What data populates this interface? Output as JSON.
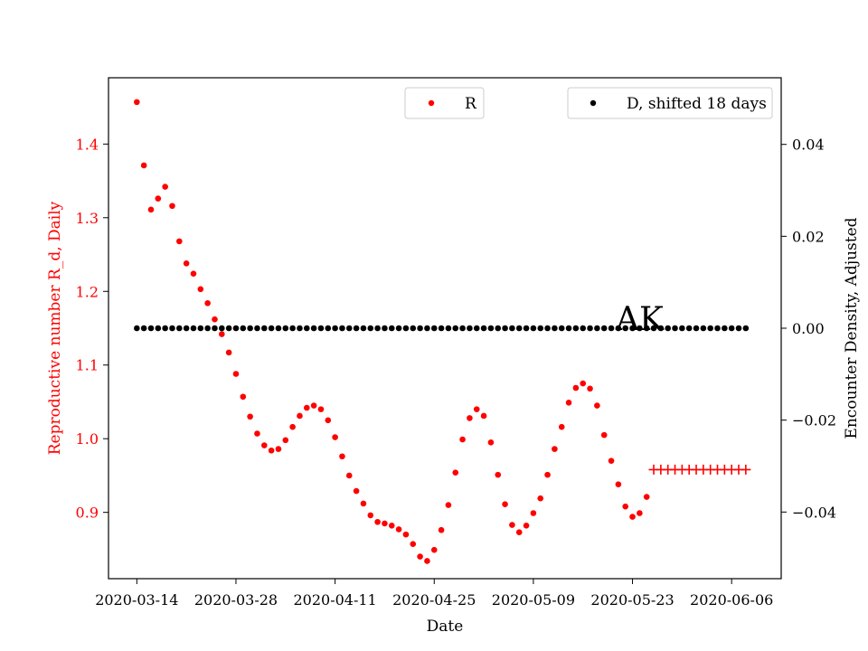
{
  "chart_data": {
    "type": "scatter",
    "annotation": "AK",
    "xlabel": "Date",
    "ylabel_left": "Reproductive number R_d, Daily",
    "ylabel_right": "Encounter Density, Adjusted",
    "x_ticks": [
      "2020-03-14",
      "2020-03-28",
      "2020-04-11",
      "2020-04-25",
      "2020-05-09",
      "2020-05-23",
      "2020-06-06"
    ],
    "y_left_ticks": [
      "0.9",
      "1.0",
      "1.1",
      "1.2",
      "1.3",
      "1.4"
    ],
    "y_right_ticks": [
      "−0.04",
      "−0.02",
      "0.00",
      "0.02",
      "0.04"
    ],
    "x_range": [
      "2020-03-10",
      "2020-06-13"
    ],
    "y_left_range": [
      0.81,
      1.49
    ],
    "y_right_range": [
      -0.0545,
      0.0545
    ],
    "colors": {
      "r_series": "#ff0000",
      "d_series": "#000000"
    },
    "legend_r": {
      "label": "R",
      "placement": "top-center"
    },
    "legend_d": {
      "label": "D, shifted 18 days",
      "placement": "top-right"
    },
    "series": [
      {
        "name": "R",
        "axis": "left",
        "marker": "dot",
        "color": "#ff0000",
        "start_date": "2020-03-14",
        "values": [
          1.457,
          1.371,
          1.311,
          1.326,
          1.342,
          1.316,
          1.268,
          1.238,
          1.224,
          1.203,
          1.184,
          1.162,
          1.142,
          1.117,
          1.088,
          1.057,
          1.03,
          1.007,
          0.991,
          0.984,
          0.986,
          0.998,
          1.016,
          1.031,
          1.042,
          1.045,
          1.04,
          1.025,
          1.002,
          0.976,
          0.95,
          0.929,
          0.912,
          0.896,
          0.887,
          0.885,
          0.882,
          0.877,
          0.87,
          0.857,
          0.84,
          0.834,
          0.849,
          0.876,
          0.91,
          0.954,
          0.999,
          1.028,
          1.04,
          1.031,
          0.995,
          0.951,
          0.911,
          0.883,
          0.873,
          0.882,
          0.899,
          0.919,
          0.951,
          0.986,
          1.016,
          1.049,
          1.069,
          1.075,
          1.068,
          1.045,
          1.005,
          0.97,
          0.938,
          0.908,
          0.894,
          0.899,
          0.921
        ]
      },
      {
        "name": "R",
        "axis": "left",
        "marker": "plus",
        "color": "#ff0000",
        "start_date": "2020-05-26",
        "values": [
          0.958,
          0.958,
          0.958,
          0.958,
          0.958,
          0.958,
          0.958,
          0.958,
          0.958,
          0.958,
          0.958,
          0.958,
          0.958,
          0.958
        ]
      },
      {
        "name": "D, shifted 18 days",
        "axis": "right",
        "marker": "dot",
        "color": "#000000",
        "start_date": "2020-03-14",
        "values": [
          0,
          0,
          0,
          0,
          0,
          0,
          0,
          0,
          0,
          0,
          0,
          0,
          0,
          0,
          0,
          0,
          0,
          0,
          0,
          0,
          0,
          0,
          0,
          0,
          0,
          0,
          0,
          0,
          0,
          0,
          0,
          0,
          0,
          0,
          0,
          0,
          0,
          0,
          0,
          0,
          0,
          0,
          0,
          0,
          0,
          0,
          0,
          0,
          0,
          0,
          0,
          0,
          0,
          0,
          0,
          0,
          0,
          0,
          0,
          0,
          0,
          0,
          0,
          0,
          0,
          0,
          0,
          0,
          0,
          0,
          0,
          0,
          0,
          0,
          0,
          0,
          0,
          0,
          0,
          0,
          0,
          0,
          0,
          0,
          0,
          0,
          0
        ]
      }
    ]
  }
}
